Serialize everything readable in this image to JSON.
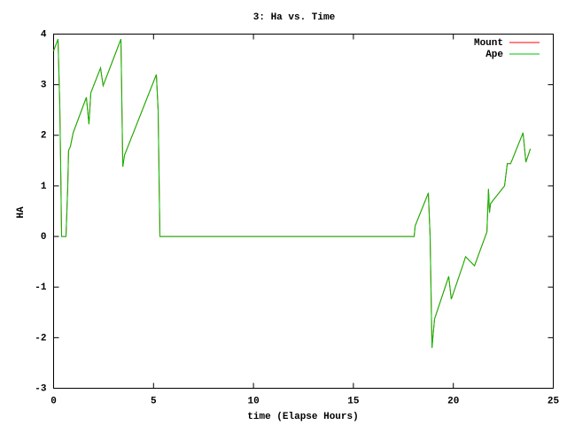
{
  "chart_data": {
    "type": "line",
    "title": "3: Ha vs. Time",
    "x_label": "time (Elapse Hours)",
    "y_label": "HA",
    "x": [
      0,
      0.22,
      0.31,
      0.35,
      0.4,
      0.62,
      0.71,
      0.75,
      0.84,
      0.98,
      1.64,
      1.77,
      1.86,
      2.35,
      2.48,
      3.37,
      3.46,
      3.55,
      5.14,
      5.23,
      5.32,
      18.04,
      18.09,
      18.75,
      18.84,
      18.93,
      19.06,
      19.77,
      19.9,
      20.49,
      20.61,
      21.06,
      21.68,
      21.76,
      21.81,
      21.86,
      22.56,
      22.7,
      22.87,
      23.49,
      23.63,
      23.85
    ],
    "series": [
      {
        "name": "Mount",
        "color": "#ff0000",
        "values": [
          3.67,
          3.9,
          2.57,
          1.52,
          0,
          0,
          1.0,
          1.7,
          1.78,
          2.05,
          2.75,
          2.22,
          2.84,
          3.33,
          2.98,
          3.9,
          1.38,
          1.61,
          3.2,
          2.49,
          0,
          0,
          0.21,
          0.86,
          0,
          -2.2,
          -1.63,
          -0.79,
          -1.24,
          -0.55,
          -0.4,
          -0.58,
          0.09,
          0.94,
          0.47,
          0.65,
          1.0,
          1.44,
          1.44,
          2.05,
          1.47,
          1.73
        ]
      },
      {
        "name": "Ape",
        "color": "#00c000",
        "values": [
          3.67,
          3.9,
          2.57,
          1.52,
          0,
          0,
          1.0,
          1.7,
          1.78,
          2.05,
          2.75,
          2.22,
          2.84,
          3.33,
          2.98,
          3.9,
          1.38,
          1.61,
          3.2,
          2.49,
          0,
          0,
          0.21,
          0.86,
          0,
          -2.2,
          -1.63,
          -0.79,
          -1.24,
          -0.55,
          -0.4,
          -0.58,
          0.09,
          0.94,
          0.47,
          0.65,
          1.0,
          1.44,
          1.44,
          2.05,
          1.47,
          1.73
        ]
      }
    ],
    "xlim": [
      0,
      25
    ],
    "xticks": [
      0,
      5,
      10,
      15,
      20,
      25
    ],
    "ylim": [
      -3,
      4
    ],
    "yticks": [
      -3,
      -2,
      -1,
      0,
      1,
      2,
      3,
      4
    ],
    "legend": "top right"
  }
}
